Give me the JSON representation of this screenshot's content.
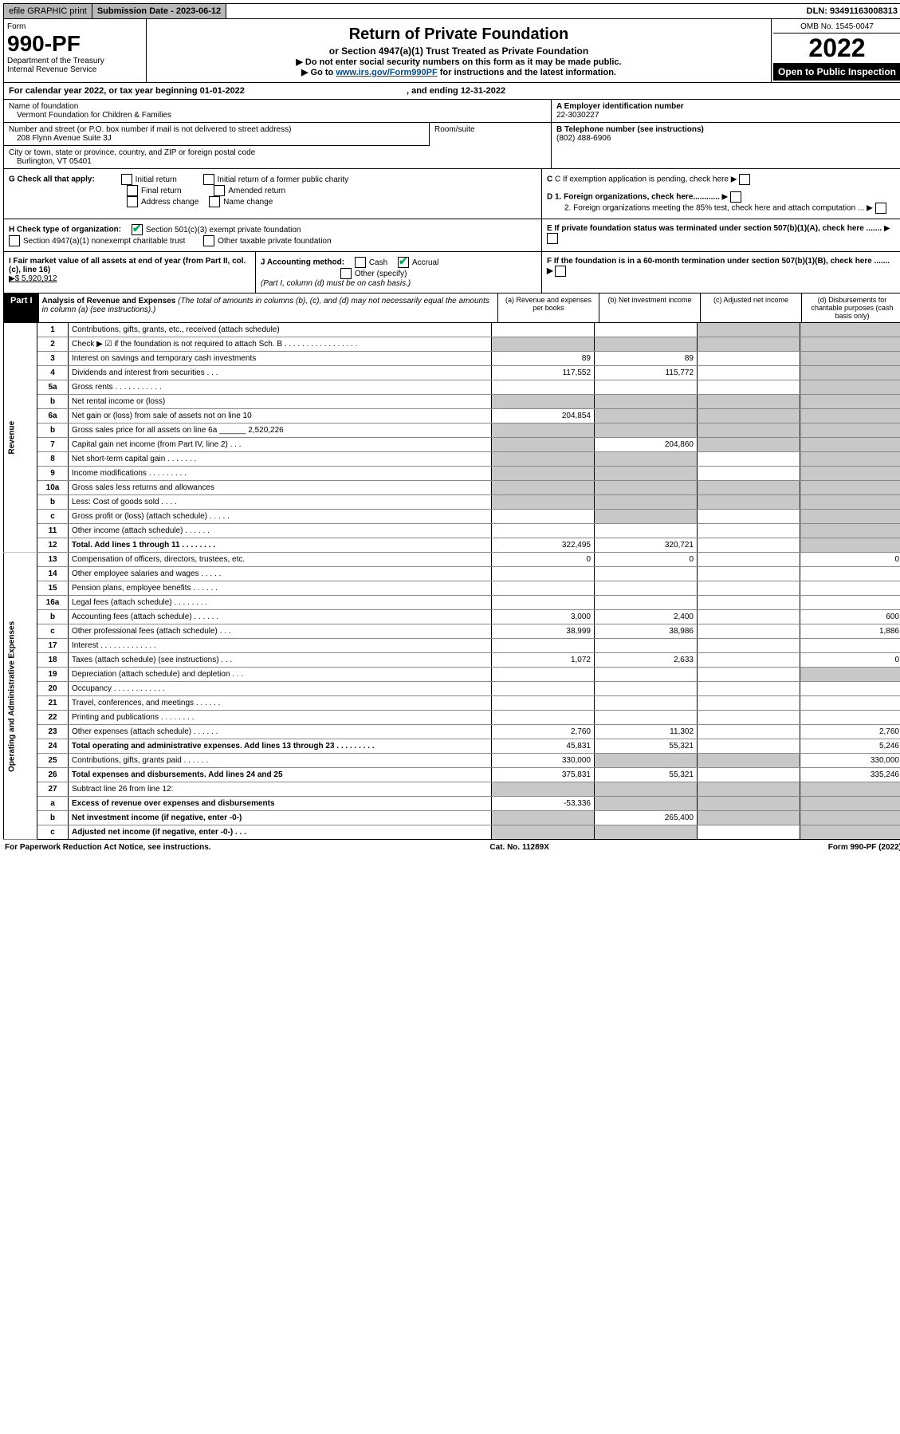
{
  "topbar": {
    "efile": "efile GRAPHIC print",
    "submission_label": "Submission Date - 2023-06-12",
    "dln": "DLN: 93491163008313"
  },
  "header": {
    "form_label": "Form",
    "form_number": "990-PF",
    "dept": "Department of the Treasury",
    "irs": "Internal Revenue Service",
    "title": "Return of Private Foundation",
    "subtitle": "or Section 4947(a)(1) Trust Treated as Private Foundation",
    "note1": "▶ Do not enter social security numbers on this form as it may be made public.",
    "note2_pre": "▶ Go to ",
    "note2_link": "www.irs.gov/Form990PF",
    "note2_post": " for instructions and the latest information.",
    "omb": "OMB No. 1545-0047",
    "year": "2022",
    "open": "Open to Public Inspection"
  },
  "cal_year": "For calendar year 2022, or tax year beginning 01-01-2022",
  "cal_year_end": ", and ending 12-31-2022",
  "foundation": {
    "name_label": "Name of foundation",
    "name": "Vermont Foundation for Children & Families",
    "addr_label": "Number and street (or P.O. box number if mail is not delivered to street address)",
    "addr": "208 Flynn Avenue Suite 3J",
    "room_label": "Room/suite",
    "city_label": "City or town, state or province, country, and ZIP or foreign postal code",
    "city": "Burlington, VT  05401"
  },
  "right_info": {
    "a_label": "A Employer identification number",
    "a_val": "22-3030227",
    "b_label": "B Telephone number (see instructions)",
    "b_val": "(802) 488-6906",
    "c_label": "C If exemption application is pending, check here",
    "d1": "D 1. Foreign organizations, check here............",
    "d2": "2. Foreign organizations meeting the 85% test, check here and attach computation ...",
    "e": "E  If private foundation status was terminated under section 507(b)(1)(A), check here .......",
    "f": "F  If the foundation is in a 60-month termination under section 507(b)(1)(B), check here .......  ▶"
  },
  "g": {
    "label": "G Check all that apply:",
    "opts": [
      "Initial return",
      "Final return",
      "Address change",
      "Initial return of a former public charity",
      "Amended return",
      "Name change"
    ]
  },
  "h": {
    "label": "H Check type of organization:",
    "opt1": "Section 501(c)(3) exempt private foundation",
    "opt2": "Section 4947(a)(1) nonexempt charitable trust",
    "opt3": "Other taxable private foundation"
  },
  "i": {
    "label": "I Fair market value of all assets at end of year (from Part II, col. (c), line 16)",
    "val": "▶$  5,920,912"
  },
  "j": {
    "label": "J Accounting method:",
    "cash": "Cash",
    "accrual": "Accrual",
    "other": "Other (specify)",
    "note": "(Part I, column (d) must be on cash basis.)"
  },
  "part1": {
    "label": "Part I",
    "title": "Analysis of Revenue and Expenses",
    "title_note": " (The total of amounts in columns (b), (c), and (d) may not necessarily equal the amounts in column (a) (see instructions).)",
    "cols": {
      "a": "(a) Revenue and expenses per books",
      "b": "(b) Net investment income",
      "c": "(c) Adjusted net income",
      "d": "(d) Disbursements for charitable purposes (cash basis only)"
    }
  },
  "side_labels": {
    "revenue": "Revenue",
    "expenses": "Operating and Administrative Expenses"
  },
  "lines": [
    {
      "n": "1",
      "d": "Contributions, gifts, grants, etc., received (attach schedule)",
      "a": "",
      "b": "",
      "c": "shaded",
      "dd": "shaded"
    },
    {
      "n": "2",
      "d": "Check ▶ ☑ if the foundation is not required to attach Sch. B   . . . . . . . . . . . . . . . . .",
      "a": "shaded",
      "b": "shaded",
      "c": "shaded",
      "dd": "shaded"
    },
    {
      "n": "3",
      "d": "Interest on savings and temporary cash investments",
      "a": "89",
      "b": "89",
      "c": "",
      "dd": "shaded"
    },
    {
      "n": "4",
      "d": "Dividends and interest from securities   .   .   .",
      "a": "117,552",
      "b": "115,772",
      "c": "",
      "dd": "shaded"
    },
    {
      "n": "5a",
      "d": "Gross rents   .   .   .   .   .   .   .   .   .   .   .",
      "a": "",
      "b": "",
      "c": "",
      "dd": "shaded"
    },
    {
      "n": "b",
      "d": "Net rental income or (loss)",
      "a": "shaded",
      "b": "shaded",
      "c": "shaded",
      "dd": "shaded"
    },
    {
      "n": "6a",
      "d": "Net gain or (loss) from sale of assets not on line 10",
      "a": "204,854",
      "b": "shaded",
      "c": "shaded",
      "dd": "shaded"
    },
    {
      "n": "b",
      "d": "Gross sales price for all assets on line 6a ______ 2,520,226",
      "a": "shaded",
      "b": "shaded",
      "c": "shaded",
      "dd": "shaded"
    },
    {
      "n": "7",
      "d": "Capital gain net income (from Part IV, line 2)   .   .   .",
      "a": "shaded",
      "b": "204,860",
      "c": "shaded",
      "dd": "shaded"
    },
    {
      "n": "8",
      "d": "Net short-term capital gain   .   .   .   .   .   .   .",
      "a": "shaded",
      "b": "shaded",
      "c": "",
      "dd": "shaded"
    },
    {
      "n": "9",
      "d": "Income modifications   .   .   .   .   .   .   .   .   .",
      "a": "shaded",
      "b": "shaded",
      "c": "",
      "dd": "shaded"
    },
    {
      "n": "10a",
      "d": "Gross sales less returns and allowances",
      "a": "shaded",
      "b": "shaded",
      "c": "shaded",
      "dd": "shaded"
    },
    {
      "n": "b",
      "d": "Less: Cost of goods sold   .   .   .   .",
      "a": "shaded",
      "b": "shaded",
      "c": "shaded",
      "dd": "shaded"
    },
    {
      "n": "c",
      "d": "Gross profit or (loss) (attach schedule)   .   .   .   .   .",
      "a": "",
      "b": "shaded",
      "c": "",
      "dd": "shaded"
    },
    {
      "n": "11",
      "d": "Other income (attach schedule)   .   .   .   .   .   .",
      "a": "",
      "b": "",
      "c": "",
      "dd": "shaded"
    },
    {
      "n": "12",
      "d": "Total. Add lines 1 through 11   .   .   .   .   .   .   .   .",
      "bold": true,
      "a": "322,495",
      "b": "320,721",
      "c": "",
      "dd": "shaded"
    },
    {
      "n": "13",
      "d": "Compensation of officers, directors, trustees, etc.",
      "a": "0",
      "b": "0",
      "c": "",
      "dd": "0",
      "sec": "exp"
    },
    {
      "n": "14",
      "d": "Other employee salaries and wages   .   .   .   .   .",
      "a": "",
      "b": "",
      "c": "",
      "dd": ""
    },
    {
      "n": "15",
      "d": "Pension plans, employee benefits   .   .   .   .   .   .",
      "a": "",
      "b": "",
      "c": "",
      "dd": ""
    },
    {
      "n": "16a",
      "d": "Legal fees (attach schedule)   .   .   .   .   .   .   .   .",
      "a": "",
      "b": "",
      "c": "",
      "dd": ""
    },
    {
      "n": "b",
      "d": "Accounting fees (attach schedule)   .   .   .   .   .   .",
      "a": "3,000",
      "b": "2,400",
      "c": "",
      "dd": "600"
    },
    {
      "n": "c",
      "d": "Other professional fees (attach schedule)   .   .   .",
      "a": "38,999",
      "b": "38,986",
      "c": "",
      "dd": "1,886"
    },
    {
      "n": "17",
      "d": "Interest   .   .   .   .   .   .   .   .   .   .   .   .   .",
      "a": "",
      "b": "",
      "c": "",
      "dd": ""
    },
    {
      "n": "18",
      "d": "Taxes (attach schedule) (see instructions)   .   .   .",
      "a": "1,072",
      "b": "2,633",
      "c": "",
      "dd": "0"
    },
    {
      "n": "19",
      "d": "Depreciation (attach schedule) and depletion   .   .   .",
      "a": "",
      "b": "",
      "c": "",
      "dd": "shaded"
    },
    {
      "n": "20",
      "d": "Occupancy   .   .   .   .   .   .   .   .   .   .   .   .",
      "a": "",
      "b": "",
      "c": "",
      "dd": ""
    },
    {
      "n": "21",
      "d": "Travel, conferences, and meetings   .   .   .   .   .   .",
      "a": "",
      "b": "",
      "c": "",
      "dd": ""
    },
    {
      "n": "22",
      "d": "Printing and publications   .   .   .   .   .   .   .   .",
      "a": "",
      "b": "",
      "c": "",
      "dd": ""
    },
    {
      "n": "23",
      "d": "Other expenses (attach schedule)   .   .   .   .   .   .",
      "a": "2,760",
      "b": "11,302",
      "c": "",
      "dd": "2,760"
    },
    {
      "n": "24",
      "d": "Total operating and administrative expenses. Add lines 13 through 23   .   .   .   .   .   .   .   .   .",
      "bold": true,
      "a": "45,831",
      "b": "55,321",
      "c": "",
      "dd": "5,246"
    },
    {
      "n": "25",
      "d": "Contributions, gifts, grants paid   .   .   .   .   .   .",
      "a": "330,000",
      "b": "shaded",
      "c": "shaded",
      "dd": "330,000"
    },
    {
      "n": "26",
      "d": "Total expenses and disbursements. Add lines 24 and 25",
      "bold": true,
      "a": "375,831",
      "b": "55,321",
      "c": "",
      "dd": "335,246"
    },
    {
      "n": "27",
      "d": "Subtract line 26 from line 12:",
      "a": "shaded",
      "b": "shaded",
      "c": "shaded",
      "dd": "shaded"
    },
    {
      "n": "a",
      "d": "Excess of revenue over expenses and disbursements",
      "bold": true,
      "a": "-53,336",
      "b": "shaded",
      "c": "shaded",
      "dd": "shaded"
    },
    {
      "n": "b",
      "d": "Net investment income (if negative, enter -0-)",
      "bold": true,
      "a": "shaded",
      "b": "265,400",
      "c": "shaded",
      "dd": "shaded"
    },
    {
      "n": "c",
      "d": "Adjusted net income (if negative, enter -0-)   .   .   .",
      "bold": true,
      "a": "shaded",
      "b": "shaded",
      "c": "",
      "dd": "shaded"
    }
  ],
  "footer": {
    "left": "For Paperwork Reduction Act Notice, see instructions.",
    "mid": "Cat. No. 11289X",
    "right": "Form 990-PF (2022)"
  }
}
